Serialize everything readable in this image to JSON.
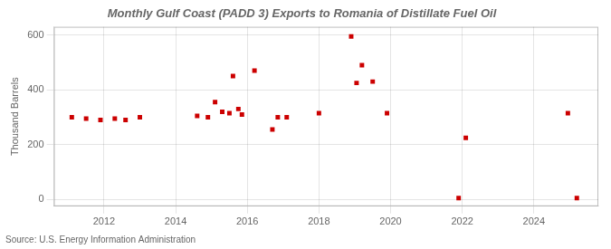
{
  "chart_data": {
    "type": "scatter",
    "title": "Monthly Gulf Coast (PADD 3) Exports to Romania of Distillate Fuel Oil",
    "ylabel": "Thousand Barrels",
    "source": "Source: U.S. Energy Information Administration",
    "x": [
      2011.1,
      2011.5,
      2011.9,
      2012.3,
      2012.6,
      2013.0,
      2014.6,
      2014.9,
      2015.1,
      2015.3,
      2015.5,
      2015.6,
      2015.75,
      2015.85,
      2016.2,
      2016.7,
      2016.85,
      2017.1,
      2018.0,
      2018.9,
      2019.05,
      2019.2,
      2019.5,
      2019.9,
      2021.9,
      2022.1,
      2024.95,
      2025.2
    ],
    "values": [
      300,
      295,
      290,
      295,
      290,
      300,
      305,
      300,
      355,
      320,
      315,
      450,
      330,
      310,
      470,
      255,
      300,
      300,
      315,
      595,
      425,
      490,
      430,
      315,
      5,
      225,
      315,
      5
    ],
    "color": "#cc0000",
    "marker": "square",
    "xlim": [
      2010.6,
      2025.8
    ],
    "xticks": [
      2012,
      2014,
      2016,
      2018,
      2020,
      2022,
      2024
    ],
    "ylim": [
      -25,
      630
    ],
    "yticks": [
      0,
      200,
      400,
      600
    ],
    "grid": true
  }
}
